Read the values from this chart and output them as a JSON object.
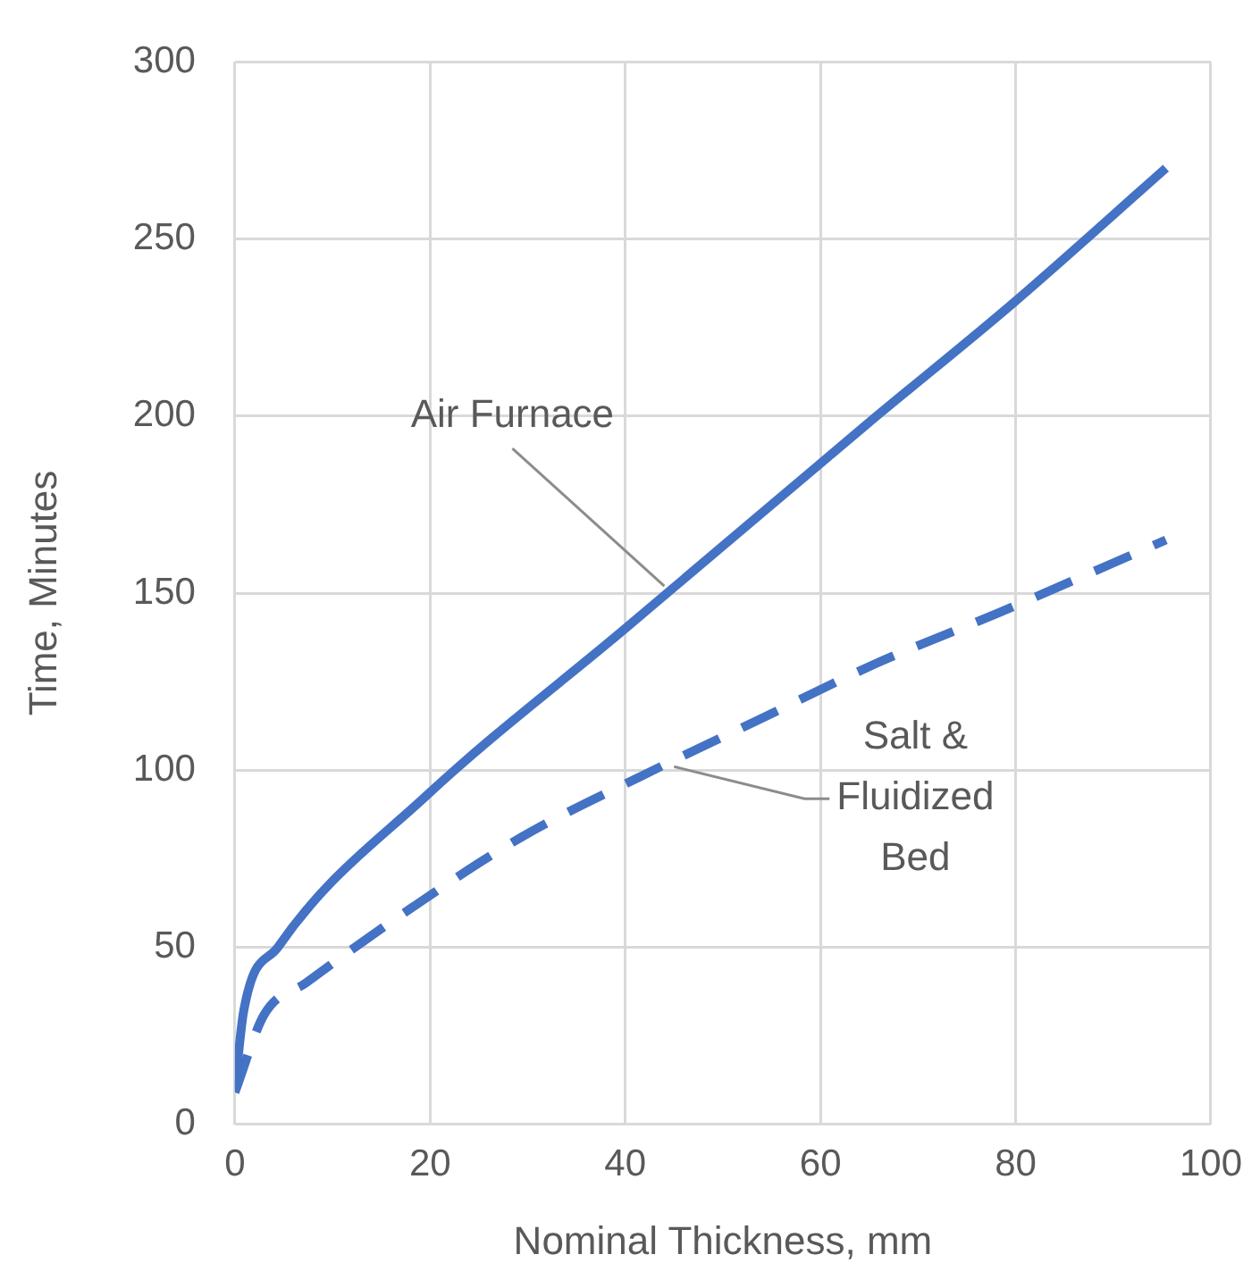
{
  "chart_data": {
    "type": "line",
    "xlabel": "Nominal Thickness, mm",
    "ylabel": "Time, Minutes",
    "xlim": [
      0,
      100
    ],
    "xticks": [
      0,
      20,
      40,
      60,
      80,
      100
    ],
    "ylim": [
      0,
      300
    ],
    "yticks": [
      0,
      50,
      100,
      150,
      200,
      250,
      300
    ],
    "grid": true,
    "legend": false,
    "marker": "none",
    "series": [
      {
        "color": "#4472c4",
        "line_style": "solid",
        "x": [
          0,
          0.9,
          4.4,
          19.7,
          40,
          64.9,
          79.8,
          95.4
        ],
        "values": [
          10,
          32,
          50,
          93,
          140,
          198,
          232,
          270
        ]
      },
      {
        "color": "#4472c4",
        "line_style": "dashed",
        "x": [
          0,
          3,
          7.3,
          18.3,
          29.3,
          41.4,
          53.5,
          65.6,
          78.3,
          95.4
        ],
        "values": [
          9,
          31,
          40,
          61.5,
          81,
          98,
          114,
          130,
          144.5,
          165
        ]
      }
    ],
    "annotations": [
      {
        "text": "Air Furnace",
        "x": 44,
        "y": 152
      },
      {
        "text": "Salt &\nFluidized\nBed",
        "x": 45,
        "y": 101
      }
    ]
  }
}
